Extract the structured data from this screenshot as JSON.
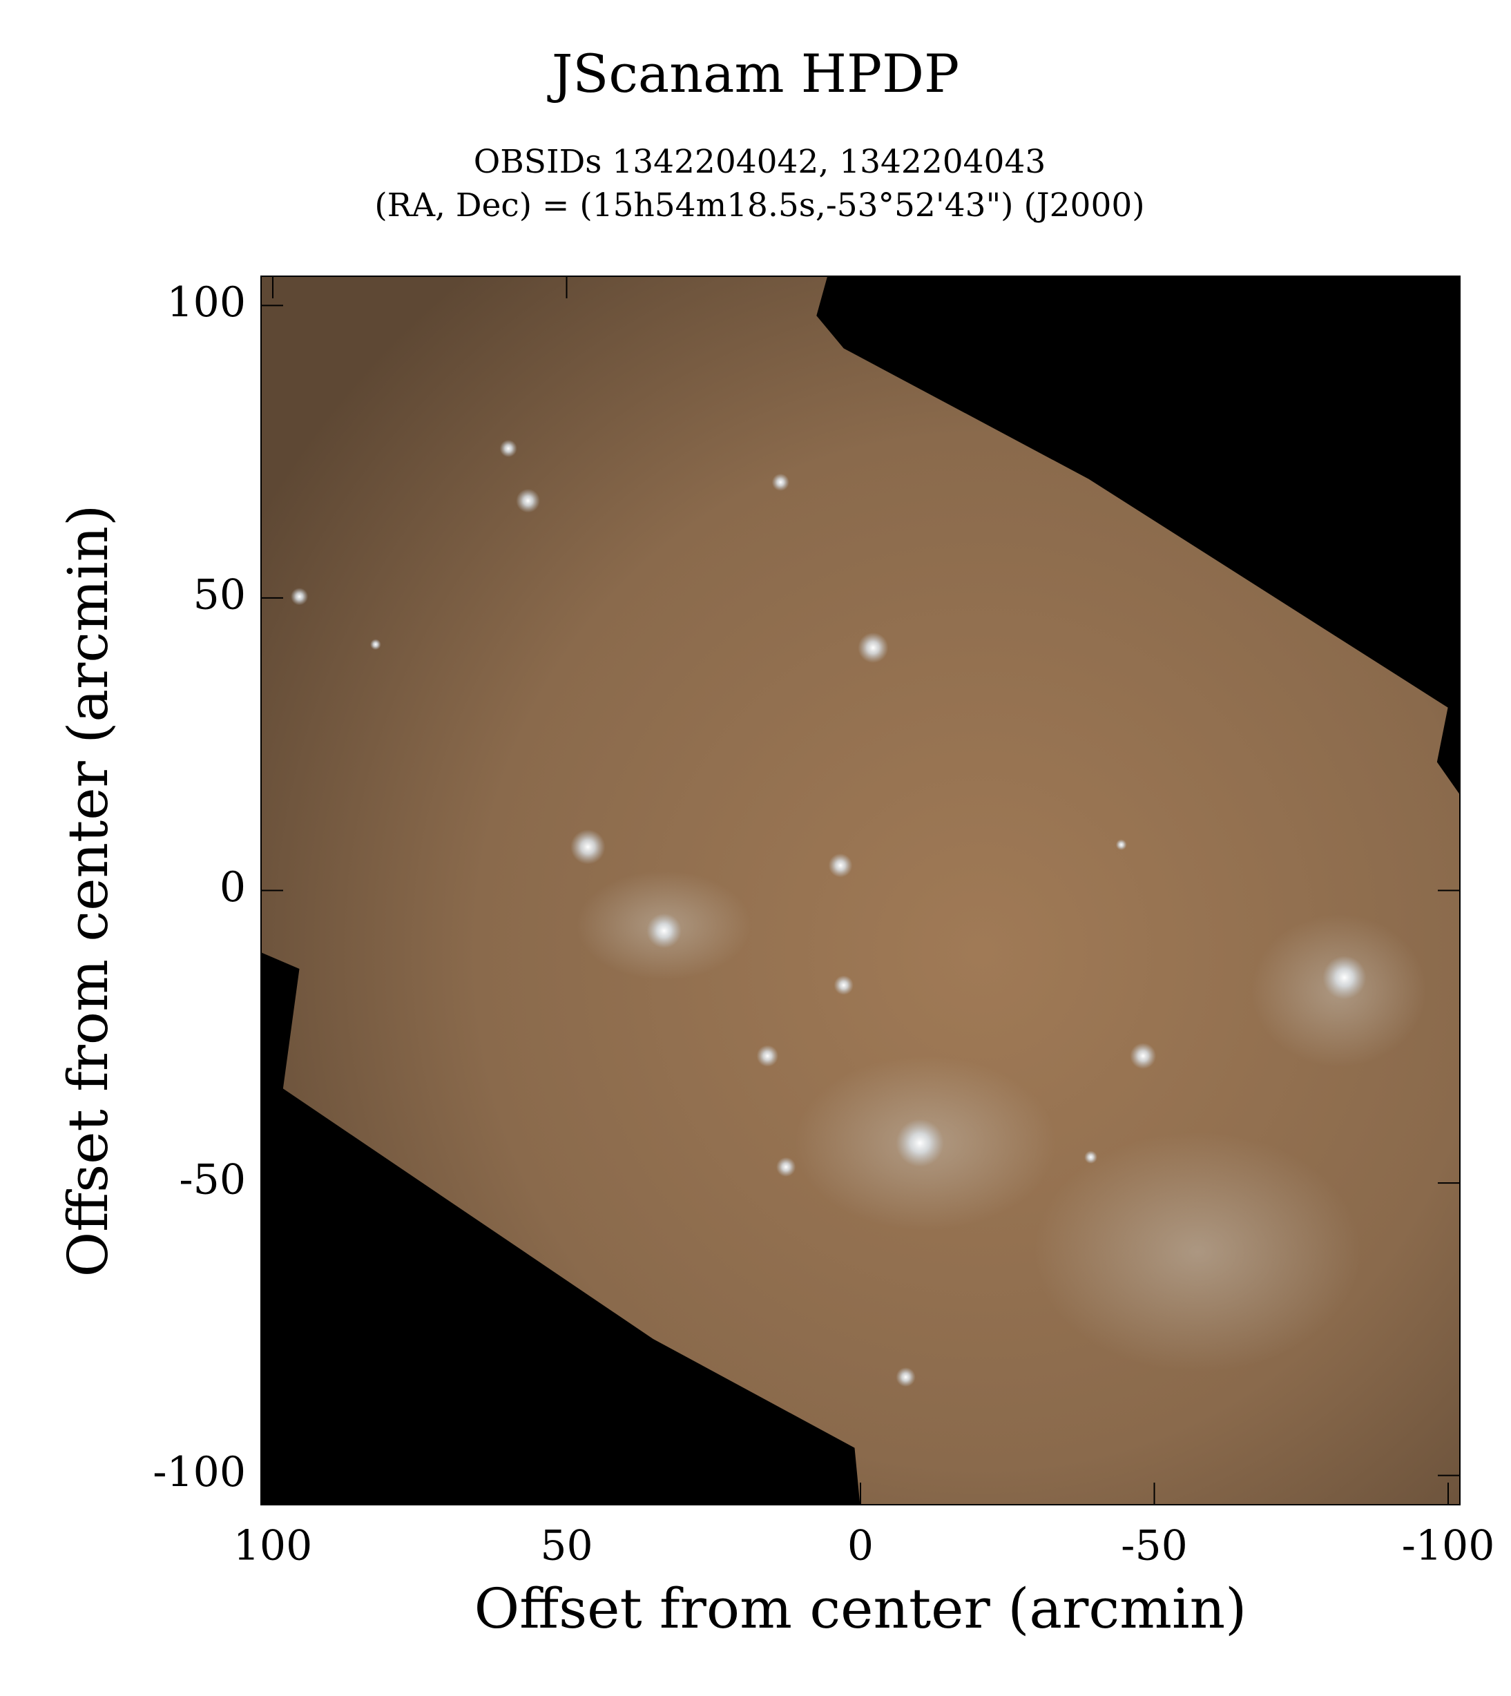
{
  "chart_data": {
    "type": "image",
    "title": "JScanam HPDP",
    "subtitle": [
      "OBSIDs 1342204042, 1342204043",
      "(RA, Dec) = (15h54m18.5s,-53°52'43\") (J2000)"
    ],
    "x_label": "Offset from center (arcmin)",
    "y_label": "Offset from center (arcmin)",
    "xlim": [
      102,
      -102
    ],
    "ylim": [
      -105,
      105
    ],
    "xticks": [
      100,
      50,
      0,
      -50,
      -100
    ],
    "yticks": [
      -100,
      -50,
      0,
      50,
      100
    ]
  }
}
